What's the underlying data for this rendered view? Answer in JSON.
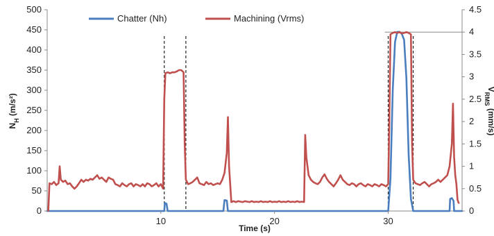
{
  "chart_data": {
    "type": "line",
    "xlabel": "Time (s)",
    "ylabel": "N_H (m/s²)",
    "ylabel_main": "N",
    "ylabel_sub": "H",
    "ylabel_rest": " (m/s²)",
    "y2label_main": "V",
    "y2label_sub": "RMS",
    "y2label_rest": " (mm/s)",
    "xlim": [
      0,
      36.5
    ],
    "ylim": [
      0,
      500
    ],
    "y2lim": [
      0,
      4.5
    ],
    "x_ticks": [
      10,
      20,
      30
    ],
    "y_ticks": [
      0,
      50,
      100,
      150,
      200,
      250,
      300,
      350,
      400,
      450,
      500
    ],
    "y2_ticks": [
      0,
      0.5,
      1,
      1.5,
      2,
      2.5,
      3,
      3.5,
      4,
      4.5
    ],
    "dashed_lines_x": [
      10.3,
      12.2,
      30.0,
      32.2
    ],
    "legend_position": "top",
    "series": [
      {
        "name": "Chatter (Nh)",
        "axis": "left",
        "color": "#4a7ebf",
        "points": [
          [
            0,
            0
          ],
          [
            10.3,
            0
          ],
          [
            10.35,
            20
          ],
          [
            10.5,
            18
          ],
          [
            10.6,
            0
          ],
          [
            15.5,
            0
          ],
          [
            15.6,
            27
          ],
          [
            15.8,
            26
          ],
          [
            15.9,
            0
          ],
          [
            30.0,
            0
          ],
          [
            30.2,
            80
          ],
          [
            30.4,
            300
          ],
          [
            30.6,
            420
          ],
          [
            30.8,
            445
          ],
          [
            31.0,
            445
          ],
          [
            31.2,
            440
          ],
          [
            31.4,
            425
          ],
          [
            31.6,
            330
          ],
          [
            31.8,
            140
          ],
          [
            32.0,
            30
          ],
          [
            32.2,
            0
          ],
          [
            35.4,
            0
          ],
          [
            35.45,
            30
          ],
          [
            35.6,
            32
          ],
          [
            35.75,
            25
          ],
          [
            35.8,
            0
          ],
          [
            36.5,
            0
          ]
        ]
      },
      {
        "name": "Machining (Vrms)",
        "axis": "right",
        "color": "#c0504d",
        "points": [
          [
            0.1,
            0
          ],
          [
            0.2,
            0.62
          ],
          [
            0.4,
            0.6
          ],
          [
            0.6,
            0.65
          ],
          [
            0.8,
            0.58
          ],
          [
            1.0,
            0.62
          ],
          [
            1.1,
            1.0
          ],
          [
            1.2,
            0.7
          ],
          [
            1.4,
            0.65
          ],
          [
            1.6,
            0.68
          ],
          [
            1.8,
            0.6
          ],
          [
            2.0,
            0.62
          ],
          [
            2.2,
            0.55
          ],
          [
            2.4,
            0.5
          ],
          [
            2.6,
            0.55
          ],
          [
            2.8,
            0.62
          ],
          [
            3.0,
            0.7
          ],
          [
            3.2,
            0.65
          ],
          [
            3.4,
            0.7
          ],
          [
            3.6,
            0.68
          ],
          [
            3.8,
            0.72
          ],
          [
            4.0,
            0.7
          ],
          [
            4.2,
            0.75
          ],
          [
            4.4,
            0.8
          ],
          [
            4.6,
            0.72
          ],
          [
            4.8,
            0.75
          ],
          [
            5.0,
            0.7
          ],
          [
            5.2,
            0.65
          ],
          [
            5.4,
            0.75
          ],
          [
            5.6,
            0.72
          ],
          [
            5.8,
            0.7
          ],
          [
            6.0,
            0.6
          ],
          [
            6.2,
            0.58
          ],
          [
            6.4,
            0.55
          ],
          [
            6.6,
            0.62
          ],
          [
            6.8,
            0.58
          ],
          [
            7.0,
            0.55
          ],
          [
            7.2,
            0.6
          ],
          [
            7.4,
            0.62
          ],
          [
            7.6,
            0.55
          ],
          [
            7.8,
            0.6
          ],
          [
            8.0,
            0.58
          ],
          [
            8.2,
            0.55
          ],
          [
            8.4,
            0.6
          ],
          [
            8.6,
            0.55
          ],
          [
            8.8,
            0.62
          ],
          [
            9.0,
            0.6
          ],
          [
            9.2,
            0.55
          ],
          [
            9.4,
            0.58
          ],
          [
            9.6,
            0.62
          ],
          [
            9.8,
            0.55
          ],
          [
            10.0,
            0.6
          ],
          [
            10.2,
            0.5
          ],
          [
            10.3,
            2.5
          ],
          [
            10.4,
            3.08
          ],
          [
            10.6,
            3.1
          ],
          [
            10.8,
            3.08
          ],
          [
            11.0,
            3.1
          ],
          [
            11.2,
            3.1
          ],
          [
            11.4,
            3.12
          ],
          [
            11.6,
            3.15
          ],
          [
            11.8,
            3.15
          ],
          [
            12.0,
            3.1
          ],
          [
            12.1,
            1.5
          ],
          [
            12.2,
            0.7
          ],
          [
            12.4,
            0.6
          ],
          [
            12.6,
            0.62
          ],
          [
            12.8,
            0.65
          ],
          [
            13.0,
            0.7
          ],
          [
            13.2,
            0.75
          ],
          [
            13.4,
            0.62
          ],
          [
            13.6,
            0.6
          ],
          [
            13.8,
            0.58
          ],
          [
            14.0,
            0.65
          ],
          [
            14.2,
            0.6
          ],
          [
            14.4,
            0.62
          ],
          [
            14.6,
            0.58
          ],
          [
            14.8,
            0.6
          ],
          [
            15.0,
            0.62
          ],
          [
            15.2,
            0.6
          ],
          [
            15.4,
            0.7
          ],
          [
            15.6,
            0.85
          ],
          [
            15.8,
            1.3
          ],
          [
            15.9,
            2.1
          ],
          [
            16.0,
            1.0
          ],
          [
            16.1,
            0.6
          ],
          [
            16.2,
            0.2
          ],
          [
            16.4,
            0.22
          ],
          [
            16.6,
            0.2
          ],
          [
            16.8,
            0.22
          ],
          [
            17.0,
            0.21
          ],
          [
            17.2,
            0.2
          ],
          [
            17.4,
            0.22
          ],
          [
            17.6,
            0.21
          ],
          [
            17.8,
            0.2
          ],
          [
            18.0,
            0.22
          ],
          [
            18.2,
            0.2
          ],
          [
            18.4,
            0.21
          ],
          [
            18.6,
            0.2
          ],
          [
            18.8,
            0.22
          ],
          [
            19.0,
            0.2
          ],
          [
            19.2,
            0.21
          ],
          [
            19.4,
            0.2
          ],
          [
            19.6,
            0.22
          ],
          [
            19.8,
            0.2
          ],
          [
            20.0,
            0.21
          ],
          [
            20.2,
            0.2
          ],
          [
            20.4,
            0.22
          ],
          [
            20.6,
            0.2
          ],
          [
            20.8,
            0.21
          ],
          [
            21.0,
            0.2
          ],
          [
            21.2,
            0.22
          ],
          [
            21.4,
            0.2
          ],
          [
            21.6,
            0.21
          ],
          [
            21.8,
            0.2
          ],
          [
            22.0,
            0.22
          ],
          [
            22.2,
            0.2
          ],
          [
            22.4,
            0.21
          ],
          [
            22.6,
            0.2
          ],
          [
            22.7,
            1.7
          ],
          [
            22.8,
            1.2
          ],
          [
            23.0,
            0.8
          ],
          [
            23.2,
            0.7
          ],
          [
            23.4,
            0.65
          ],
          [
            23.6,
            0.62
          ],
          [
            23.8,
            0.6
          ],
          [
            24.0,
            0.65
          ],
          [
            24.2,
            0.75
          ],
          [
            24.4,
            0.82
          ],
          [
            24.6,
            0.72
          ],
          [
            24.8,
            0.65
          ],
          [
            25.0,
            0.6
          ],
          [
            25.2,
            0.55
          ],
          [
            25.4,
            0.62
          ],
          [
            25.6,
            0.7
          ],
          [
            25.8,
            0.8
          ],
          [
            26.0,
            0.7
          ],
          [
            26.2,
            0.65
          ],
          [
            26.4,
            0.6
          ],
          [
            26.6,
            0.58
          ],
          [
            26.8,
            0.62
          ],
          [
            27.0,
            0.6
          ],
          [
            27.2,
            0.55
          ],
          [
            27.4,
            0.6
          ],
          [
            27.6,
            0.62
          ],
          [
            27.8,
            0.58
          ],
          [
            28.0,
            0.55
          ],
          [
            28.2,
            0.6
          ],
          [
            28.4,
            0.58
          ],
          [
            28.6,
            0.55
          ],
          [
            28.8,
            0.6
          ],
          [
            29.0,
            0.58
          ],
          [
            29.2,
            0.55
          ],
          [
            29.4,
            0.6
          ],
          [
            29.6,
            0.58
          ],
          [
            29.8,
            0.55
          ],
          [
            30.0,
            0.6
          ],
          [
            30.1,
            2.0
          ],
          [
            30.2,
            3.95
          ],
          [
            30.4,
            3.98
          ],
          [
            30.6,
            4.0
          ],
          [
            30.8,
            3.98
          ],
          [
            31.0,
            4.0
          ],
          [
            31.2,
            3.97
          ],
          [
            31.4,
            3.98
          ],
          [
            31.6,
            4.0
          ],
          [
            31.8,
            3.98
          ],
          [
            32.0,
            3.95
          ],
          [
            32.1,
            1.5
          ],
          [
            32.2,
            0.7
          ],
          [
            32.4,
            0.62
          ],
          [
            32.6,
            0.6
          ],
          [
            32.8,
            0.58
          ],
          [
            33.0,
            0.62
          ],
          [
            33.2,
            0.65
          ],
          [
            33.4,
            0.6
          ],
          [
            33.6,
            0.55
          ],
          [
            33.8,
            0.6
          ],
          [
            34.0,
            0.62
          ],
          [
            34.2,
            0.65
          ],
          [
            34.4,
            0.7
          ],
          [
            34.6,
            0.65
          ],
          [
            34.8,
            0.7
          ],
          [
            35.0,
            0.75
          ],
          [
            35.2,
            0.8
          ],
          [
            35.4,
            1.0
          ],
          [
            35.6,
            1.5
          ],
          [
            35.7,
            2.4
          ],
          [
            35.8,
            1.2
          ],
          [
            35.9,
            0.8
          ],
          [
            36.0,
            0.6
          ],
          [
            36.1,
            0.25
          ],
          [
            36.2,
            0.18
          ]
        ]
      }
    ]
  }
}
